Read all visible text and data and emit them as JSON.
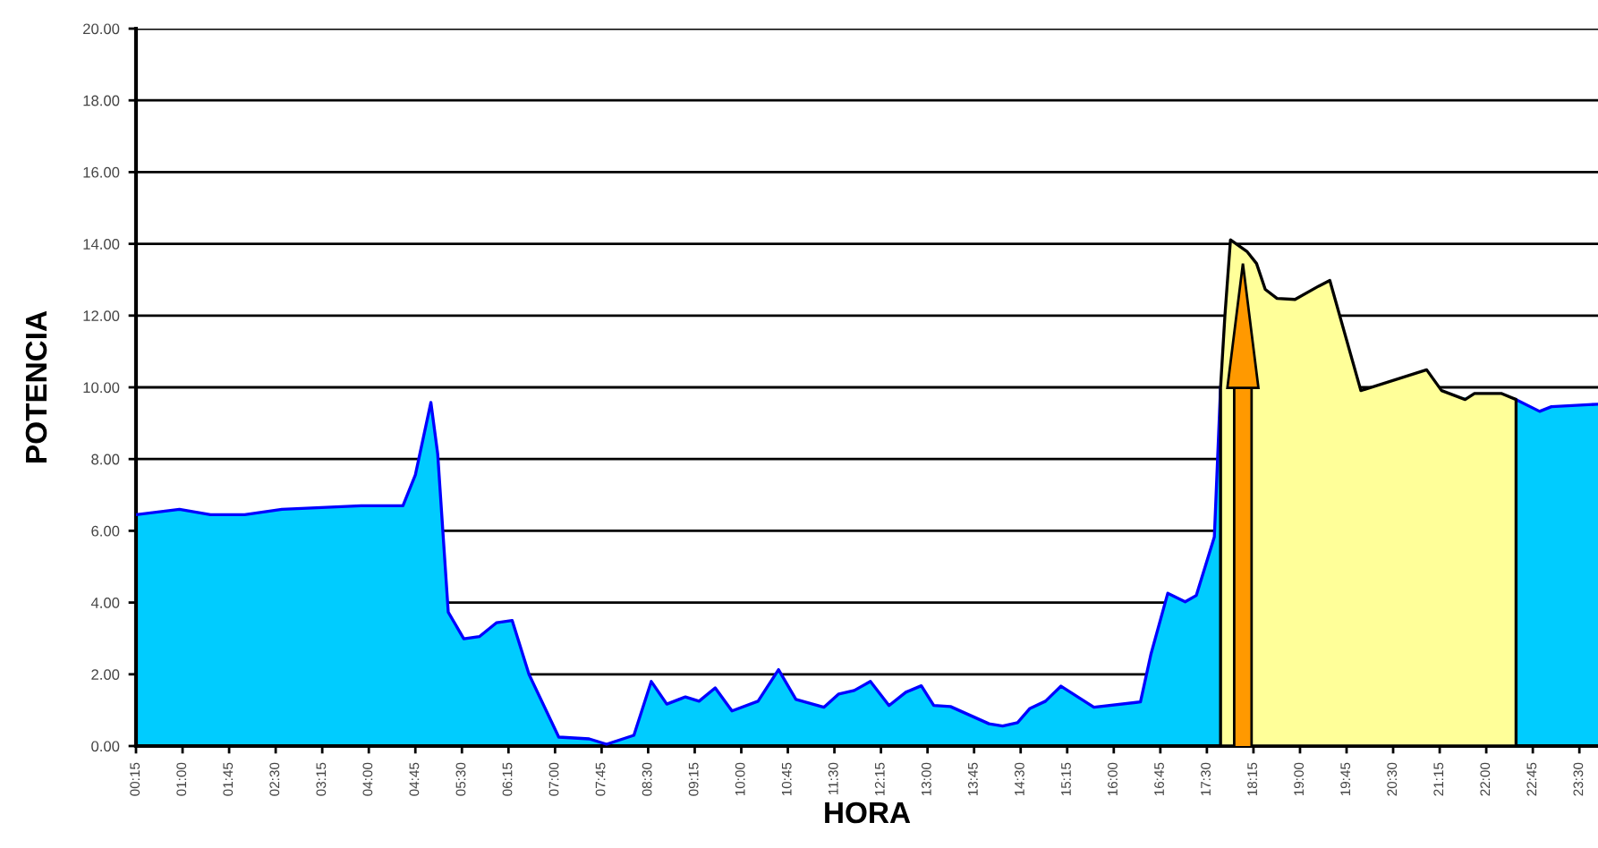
{
  "chart_data": {
    "type": "area",
    "xlabel": "HORA",
    "ylabel": "POTENCIA",
    "xlim": [
      0.25,
      23.8
    ],
    "ylim": [
      0,
      20
    ],
    "xticks": [
      {
        "value": 0.25,
        "label": "00:15"
      },
      {
        "value": 1.0,
        "label": "01:00"
      },
      {
        "value": 1.75,
        "label": "01:45"
      },
      {
        "value": 2.5,
        "label": "02:30"
      },
      {
        "value": 3.25,
        "label": "03:15"
      },
      {
        "value": 4.0,
        "label": "04:00"
      },
      {
        "value": 4.75,
        "label": "04:45"
      },
      {
        "value": 5.5,
        "label": "05:30"
      },
      {
        "value": 6.25,
        "label": "06:15"
      },
      {
        "value": 7.0,
        "label": "07:00"
      },
      {
        "value": 7.75,
        "label": "07:45"
      },
      {
        "value": 8.5,
        "label": "08:30"
      },
      {
        "value": 9.25,
        "label": "09:15"
      },
      {
        "value": 10.0,
        "label": "10:00"
      },
      {
        "value": 10.75,
        "label": "10:45"
      },
      {
        "value": 11.5,
        "label": "11:30"
      },
      {
        "value": 12.25,
        "label": "12:15"
      },
      {
        "value": 13.0,
        "label": "13:00"
      },
      {
        "value": 13.75,
        "label": "13:45"
      },
      {
        "value": 14.5,
        "label": "14:30"
      },
      {
        "value": 15.25,
        "label": "15:15"
      },
      {
        "value": 16.0,
        "label": "16:00"
      },
      {
        "value": 16.75,
        "label": "16:45"
      },
      {
        "value": 17.5,
        "label": "17:30"
      },
      {
        "value": 18.25,
        "label": "18:15"
      },
      {
        "value": 19.0,
        "label": "19:00"
      },
      {
        "value": 19.75,
        "label": "19:45"
      },
      {
        "value": 20.5,
        "label": "20:30"
      },
      {
        "value": 21.25,
        "label": "21:15"
      },
      {
        "value": 22.0,
        "label": "22:00"
      },
      {
        "value": 22.75,
        "label": "22:45"
      },
      {
        "value": 23.5,
        "label": "23:30"
      }
    ],
    "yticks": [
      {
        "value": 0,
        "label": "0.00"
      },
      {
        "value": 2,
        "label": "2.00"
      },
      {
        "value": 4,
        "label": "4.00"
      },
      {
        "value": 6,
        "label": "6.00"
      },
      {
        "value": 8,
        "label": "8.00"
      },
      {
        "value": 10,
        "label": "10.00"
      },
      {
        "value": 12,
        "label": "12.00"
      },
      {
        "value": 14,
        "label": "14.00"
      },
      {
        "value": 16,
        "label": "16.00"
      },
      {
        "value": 18,
        "label": "18.00"
      },
      {
        "value": 20,
        "label": "20.00"
      }
    ],
    "grid": "y",
    "series": [
      {
        "color": "#00ccff",
        "x": [
          0.25,
          0.95,
          1.45,
          2.0,
          2.6,
          3.88,
          4.55,
          4.75,
          5.0,
          5.11,
          5.28,
          5.53,
          5.78,
          6.06,
          6.31,
          6.58,
          7.06,
          7.55,
          7.83,
          8.27,
          8.55,
          8.8,
          9.1,
          9.32,
          9.58,
          9.85,
          10.27,
          10.6,
          10.88,
          11.33,
          11.57,
          11.82,
          12.08,
          12.38,
          12.65,
          12.9,
          13.1,
          13.37,
          13.99,
          14.21,
          14.45,
          14.65,
          14.9,
          15.15,
          15.68,
          16.43,
          16.6,
          16.87,
          17.15,
          17.33,
          17.62,
          17.72,
          20.0,
          22.48,
          22.86,
          23.05,
          23.8
        ],
        "values": [
          6.45,
          6.6,
          6.45,
          6.45,
          6.6,
          6.7,
          6.7,
          7.56,
          9.58,
          8.14,
          3.73,
          2.99,
          3.05,
          3.44,
          3.5,
          2.0,
          0.25,
          0.2,
          0.05,
          0.3,
          1.8,
          1.17,
          1.37,
          1.25,
          1.62,
          0.98,
          1.25,
          2.13,
          1.3,
          1.08,
          1.45,
          1.55,
          1.8,
          1.13,
          1.5,
          1.68,
          1.13,
          1.1,
          0.62,
          0.56,
          0.65,
          1.05,
          1.25,
          1.67,
          1.08,
          1.23,
          2.57,
          4.26,
          4.02,
          4.2,
          5.83,
          9.99,
          null,
          9.66,
          9.33,
          9.46,
          9.53
        ]
      },
      {
        "color": "#ffff99",
        "x": [
          17.72,
          17.79,
          17.88,
          18.15,
          18.3,
          18.44,
          18.63,
          18.92,
          19.3,
          19.48,
          19.98,
          21.04,
          21.28,
          21.66,
          21.81,
          22.24,
          22.48
        ],
        "values": [
          9.99,
          11.99,
          14.11,
          13.78,
          13.45,
          12.73,
          12.48,
          12.45,
          12.82,
          12.98,
          9.91,
          10.49,
          9.91,
          9.66,
          9.83,
          9.83,
          9.66
        ]
      }
    ],
    "ref_lines": [
      {
        "axis": "x",
        "value": 18.08,
        "color": "#ff9900"
      }
    ]
  }
}
